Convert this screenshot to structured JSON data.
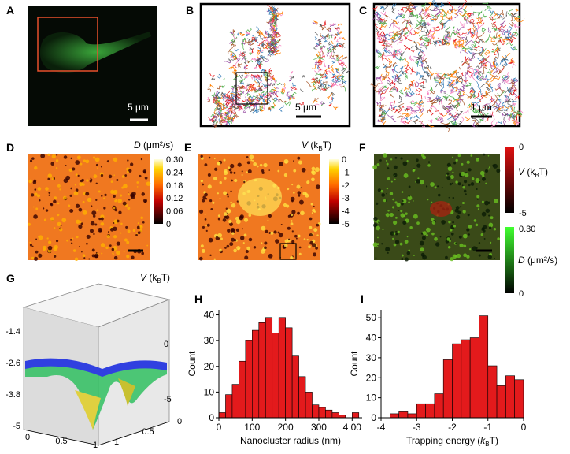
{
  "panels": {
    "a": {
      "label": "A",
      "scale": "5 μm"
    },
    "b": {
      "label": "B",
      "scale": "5 μm"
    },
    "c": {
      "label": "C",
      "scale": "1 μm"
    },
    "d": {
      "label": "D",
      "cb_sym": "D",
      "cb_unit": "(μm²/s)",
      "cb_ticks": [
        "0.30",
        "0.24",
        "0.18",
        "0.12",
        "0.06",
        "0"
      ]
    },
    "e": {
      "label": "E",
      "cb_sym": "V",
      "cb_pre": "(k",
      "cb_sub": "B",
      "cb_post": "T)",
      "cb_ticks": [
        "0",
        "-1",
        "-2",
        "-3",
        "-4",
        "-5"
      ]
    },
    "f": {
      "label": "F",
      "v_sym": "V",
      "v_pre": "(k",
      "v_sub": "B",
      "v_post": "T)",
      "v_ticks": [
        "0",
        "-5"
      ],
      "d_sym": "D",
      "d_unit": "(μm²/s)",
      "d_ticks": [
        "0.30",
        "0"
      ]
    },
    "g": {
      "label": "G",
      "sym": "V",
      "pre": "(k",
      "sub": "B",
      "post": "T)",
      "left_ticks": [
        "-1.4",
        "-2.6",
        "-3.8",
        "-5"
      ],
      "right_ticks": [
        "0",
        "-5"
      ],
      "x_ticks": [
        "0",
        "0.5",
        "1"
      ],
      "y_ticks": [
        "0",
        "0.5",
        "1"
      ]
    },
    "h": {
      "label": "H"
    },
    "i": {
      "label": "I"
    }
  },
  "chart_data": [
    {
      "type": "histogram",
      "xlabel": "Nanocluster radius (nm)",
      "ylabel": "Count",
      "color": "#e31a1c",
      "bins": [
        0,
        20,
        40,
        60,
        80,
        100,
        120,
        140,
        160,
        180,
        200,
        220,
        240,
        260,
        280,
        300,
        320,
        340,
        360,
        380,
        400,
        420
      ],
      "counts": [
        2,
        9,
        13,
        22,
        30,
        34,
        37,
        39,
        33,
        39,
        35,
        24,
        16,
        10,
        5,
        4,
        3,
        2,
        1,
        0,
        2
      ],
      "xlim": [
        0,
        430
      ],
      "ylim": [
        0,
        42
      ],
      "xticks": [
        0,
        100,
        200,
        300,
        {
          "value": 400,
          "label": "4 00"
        }
      ],
      "yticks": [
        0,
        10,
        20,
        30,
        40
      ]
    },
    {
      "type": "histogram",
      "xlabel": "Trapping energy (",
      "xlabel_sym": "k",
      "xlabel_sub": "B",
      "xlabel_post": "T)",
      "ylabel": "Count",
      "color": "#e31a1c",
      "bins": [
        -3.75,
        -3.5,
        -3.25,
        -3,
        -2.75,
        -2.5,
        -2.25,
        -2,
        -1.75,
        -1.5,
        -1.25,
        -1,
        -0.75,
        -0.5,
        -0.25,
        0
      ],
      "counts": [
        2,
        3,
        2,
        7,
        7,
        12,
        29,
        37,
        39,
        40,
        51,
        26,
        16,
        21,
        19
      ],
      "xlim": [
        -4,
        0
      ],
      "ylim": [
        0,
        54
      ],
      "xticks": [
        -4,
        -3,
        -2,
        -1,
        0
      ],
      "yticks": [
        0,
        10,
        20,
        30,
        40,
        50
      ]
    }
  ]
}
